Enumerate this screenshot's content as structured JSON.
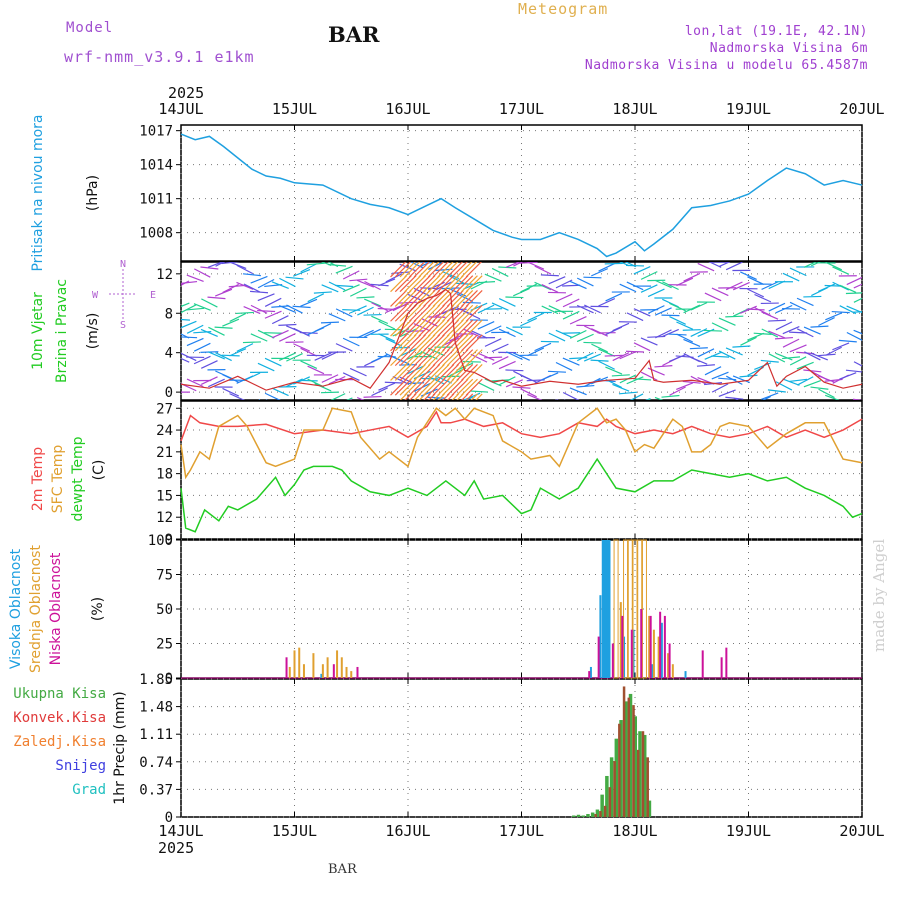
{
  "header": {
    "title": "BAR",
    "model_label": "Model",
    "model_name": "wrf-nmm_v3.9.1 e1km",
    "meteogram_label": "Meteogram",
    "info_lines": [
      "lon,lat (19.1E, 42.1N)",
      "Nadmorska Visina 6m",
      "Nadmorska Visina u modelu 65.4587m"
    ],
    "bottom_station": "BAR",
    "made_by": "made by Angel"
  },
  "colors": {
    "pressure": "#1fa0e0",
    "wind_label": "#22cc22",
    "temp2m": "#f04848",
    "sfc_temp": "#e0a030",
    "dewpoint": "#22cc22",
    "cloud_high": "#1fa0e0",
    "cloud_mid": "#e0a030",
    "cloud_low": "#cc1199",
    "precip_total": "#44aa44",
    "precip_conv": "#e03a3a",
    "precip_frozen": "#f08030",
    "snow": "#4040e0",
    "hail": "#20c0c0",
    "compass": "#b060d0"
  },
  "chart_data": [
    {
      "type": "line",
      "panel": "pressure",
      "year_top": "2025",
      "year_bottom": "2025",
      "date_ticks": [
        "14JUL",
        "15JUL",
        "16JUL",
        "17JUL",
        "18JUL",
        "19JUL",
        "20JUL"
      ],
      "xlim": [
        0,
        144
      ],
      "ylabel": "Pritisak na nivou mora",
      "unit": "(hPa)",
      "yticks": [
        "1008",
        "1011",
        "1014",
        "1017"
      ],
      "ylim": [
        1005.5,
        1017.5
      ],
      "series": [
        {
          "x": [
            0,
            3,
            6,
            9,
            12,
            15,
            18,
            21,
            24,
            30,
            36,
            40,
            44,
            48,
            52,
            55,
            58,
            62,
            66,
            70,
            72,
            76,
            80,
            84,
            88,
            90,
            92,
            96,
            98,
            100,
            104,
            108,
            112,
            114,
            116,
            120,
            124,
            128,
            132,
            136,
            140,
            144
          ],
          "values": [
            1016.7,
            1016.2,
            1016.5,
            1015.6,
            1014.6,
            1013.6,
            1013.0,
            1012.8,
            1012.4,
            1012.2,
            1011.0,
            1010.5,
            1010.2,
            1009.6,
            1010.4,
            1011.0,
            1010.2,
            1009.2,
            1008.2,
            1007.6,
            1007.4,
            1007.4,
            1008.0,
            1007.4,
            1006.6,
            1005.9,
            1006.2,
            1007.2,
            1006.4,
            1007.0,
            1008.3,
            1010.2,
            1010.4,
            1010.6,
            1010.8,
            1011.4,
            1012.6,
            1013.7,
            1013.2,
            1012.2,
            1012.6,
            1012.2
          ]
        }
      ]
    },
    {
      "type": "line",
      "panel": "wind",
      "ylabel": "10m Vjetar Brzina i Pravac",
      "unit": "(m/s)",
      "yticks": [
        "0",
        "4",
        "8",
        "12"
      ],
      "ylim": [
        -0.8,
        13.2
      ],
      "compass": {
        "n": "N",
        "s": "S",
        "w": "W",
        "e": "E"
      },
      "series": [
        {
          "name": "speed",
          "x": [
            0,
            6,
            12,
            18,
            24,
            30,
            36,
            40,
            44,
            48,
            50,
            52,
            54,
            56,
            57,
            58,
            60,
            62,
            64,
            66,
            68,
            72,
            78,
            84,
            90,
            96,
            99,
            100,
            102,
            108,
            114,
            120,
            124,
            126,
            128,
            132,
            136,
            140,
            144
          ],
          "values": [
            0.8,
            0.4,
            1.6,
            0.2,
            1.0,
            0.6,
            1.4,
            0.4,
            3.0,
            8.0,
            9.0,
            9.5,
            9.8,
            10.4,
            10.0,
            5.0,
            2.2,
            2.0,
            1.5,
            1.0,
            1.2,
            0.6,
            1.1,
            0.8,
            1.2,
            1.4,
            3.2,
            1.2,
            1.0,
            1.2,
            0.8,
            1.2,
            3.0,
            0.6,
            1.6,
            2.6,
            1.0,
            0.4,
            0.8
          ]
        }
      ]
    },
    {
      "type": "line",
      "panel": "temperature",
      "unit": "(C)",
      "yticks": [
        "9",
        "12",
        "15",
        "18",
        "21",
        "24",
        "27"
      ],
      "ylim": [
        9,
        28
      ],
      "series": [
        {
          "name": "2m Temp",
          "x": [
            0,
            2,
            4,
            8,
            12,
            18,
            24,
            30,
            36,
            40,
            44,
            48,
            52,
            54,
            55,
            57,
            60,
            64,
            68,
            72,
            76,
            80,
            84,
            88,
            90,
            92,
            96,
            100,
            104,
            108,
            112,
            116,
            120,
            124,
            128,
            132,
            136,
            140,
            144
          ],
          "values": [
            22.5,
            26.0,
            25.0,
            24.5,
            24.5,
            24.8,
            23.5,
            24.0,
            23.5,
            24.0,
            24.5,
            23.0,
            24.5,
            26.5,
            25.0,
            25.0,
            25.5,
            24.5,
            25.0,
            23.5,
            23.0,
            23.5,
            25.0,
            24.5,
            25.5,
            24.5,
            23.5,
            24.0,
            23.5,
            24.5,
            23.5,
            23.0,
            23.5,
            24.5,
            23.0,
            24.0,
            23.0,
            24.0,
            25.5
          ]
        },
        {
          "name": "SFC Temp",
          "x": [
            0,
            1,
            2,
            4,
            6,
            8,
            12,
            14,
            18,
            20,
            24,
            26,
            30,
            32,
            36,
            38,
            42,
            44,
            48,
            50,
            54,
            56,
            58,
            60,
            62,
            66,
            68,
            72,
            74,
            78,
            80,
            84,
            88,
            90,
            92,
            94,
            96,
            98,
            100,
            102,
            104,
            106,
            108,
            110,
            112,
            114,
            116,
            120,
            124,
            128,
            132,
            136,
            140,
            144
          ],
          "values": [
            22.0,
            17.5,
            18.5,
            21.0,
            20.0,
            24.5,
            26.0,
            24.5,
            19.5,
            19.0,
            20.0,
            24.0,
            24.0,
            27.0,
            26.5,
            23.0,
            20.0,
            21.0,
            19.0,
            23.0,
            27.0,
            26.0,
            27.0,
            25.5,
            27.0,
            26.0,
            22.5,
            21.0,
            20.0,
            20.5,
            19.0,
            25.0,
            27.0,
            25.0,
            25.5,
            24.0,
            21.0,
            22.0,
            21.5,
            23.5,
            25.5,
            24.5,
            21.0,
            21.0,
            22.0,
            24.5,
            25.0,
            24.5,
            21.5,
            23.5,
            25.0,
            25.0,
            20.0,
            19.5
          ]
        },
        {
          "name": "dewpt Temp",
          "x": [
            0,
            1,
            3,
            5,
            8,
            10,
            12,
            16,
            20,
            22,
            24,
            26,
            28,
            30,
            32,
            34,
            36,
            40,
            44,
            48,
            52,
            56,
            58,
            60,
            62,
            64,
            68,
            72,
            74,
            76,
            80,
            84,
            88,
            90,
            92,
            96,
            100,
            104,
            108,
            112,
            116,
            120,
            124,
            128,
            132,
            136,
            140,
            142,
            144
          ],
          "values": [
            16.0,
            10.5,
            10.0,
            13.0,
            11.5,
            13.5,
            13.0,
            14.5,
            17.5,
            15.0,
            16.5,
            18.5,
            19.0,
            19.0,
            19.0,
            18.5,
            17.0,
            15.5,
            15.0,
            16.0,
            15.0,
            17.0,
            16.0,
            15.0,
            17.0,
            14.5,
            15.0,
            12.5,
            13.0,
            16.0,
            14.5,
            16.0,
            20.0,
            18.0,
            16.0,
            15.5,
            17.0,
            17.0,
            18.5,
            18.0,
            17.5,
            18.0,
            17.0,
            17.5,
            16.0,
            15.0,
            13.5,
            12.0,
            12.5
          ]
        }
      ]
    },
    {
      "type": "bar",
      "panel": "cloud",
      "unit": "(%)",
      "yticks": [
        "0",
        "25",
        "50",
        "75",
        "100"
      ],
      "ylim": [
        0,
        100
      ],
      "series": [
        {
          "name": "Visoka Oblacnost",
          "x": [
            30,
            87,
            89,
            89.5,
            90,
            90.5,
            94,
            96,
            100,
            102,
            107
          ],
          "values": [
            3,
            8,
            60,
            100,
            100,
            100,
            30,
            35,
            10,
            40,
            5
          ]
        },
        {
          "name": "Srednja Oblacnost",
          "x": [
            23,
            24,
            25,
            26,
            28,
            30,
            31,
            33,
            34,
            35,
            36,
            92,
            93,
            94,
            95,
            96,
            97,
            98,
            99,
            100,
            101,
            103,
            104
          ],
          "values": [
            8,
            20,
            22,
            10,
            18,
            10,
            15,
            20,
            15,
            8,
            5,
            100,
            55,
            100,
            100,
            100,
            100,
            100,
            45,
            35,
            30,
            18,
            10
          ]
        },
        {
          "name": "Niska Oblacnost",
          "x": [
            22,
            32,
            37,
            86,
            88,
            91,
            93,
            95,
            97,
            99,
            101,
            102,
            103,
            110,
            114,
            115
          ],
          "values": [
            15,
            10,
            8,
            5,
            30,
            25,
            45,
            35,
            50,
            45,
            48,
            45,
            25,
            20,
            15,
            22
          ]
        }
      ]
    },
    {
      "type": "bar",
      "panel": "precip",
      "ylabel": "1hr Precip",
      "unit": "(mm)",
      "yticks": [
        "0",
        "0.37",
        "0.74",
        "1.11",
        "1.48",
        "1.85"
      ],
      "ylim": [
        0,
        1.85
      ],
      "legend": [
        "Ukupna Kisa",
        "Konvek.Kisa",
        "Zaledj.Kisa",
        "Snijeg",
        "Grad"
      ],
      "series": [
        {
          "name": "Ukupna Kisa",
          "x": [
            83,
            84,
            85,
            86,
            87,
            88,
            89,
            90,
            91,
            92,
            93,
            94,
            95,
            96,
            97,
            98,
            99
          ],
          "values": [
            0.02,
            0.03,
            0.02,
            0.04,
            0.06,
            0.1,
            0.3,
            0.55,
            0.8,
            1.05,
            1.3,
            1.55,
            1.65,
            1.35,
            1.15,
            1.1,
            0.22
          ]
        },
        {
          "name": "Konvek.Kisa",
          "x": [
            87,
            88,
            89,
            90,
            91,
            92,
            93,
            94,
            95,
            96,
            97,
            98
          ],
          "values": [
            0.04,
            0.08,
            0.15,
            0.4,
            0.75,
            1.25,
            1.75,
            1.6,
            1.5,
            0.9,
            1.15,
            0.8
          ]
        }
      ]
    }
  ]
}
